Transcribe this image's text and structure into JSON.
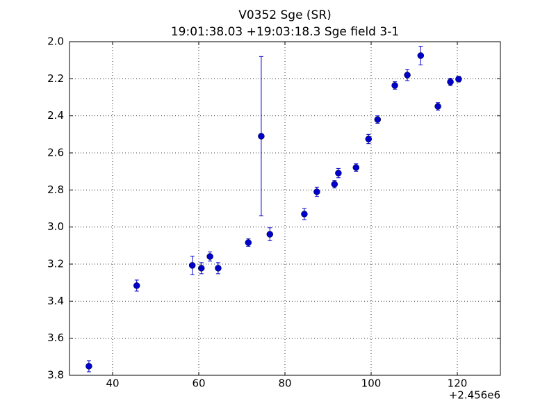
{
  "chart_data": {
    "type": "scatter",
    "title": "V0352 Sge (SR)",
    "subtitle": "19:01:38.03 +19:03:18.3 Sge field 3-1",
    "x_offset": "+2.456e6",
    "color": "#0000cc",
    "x": [
      34.5,
      45.6,
      58.5,
      60.6,
      62.6,
      64.5,
      71.5,
      74.5,
      76.5,
      84.5,
      87.4,
      91.5,
      92.4,
      96.5,
      99.4,
      101.5,
      105.5,
      108.4,
      111.5,
      115.5,
      118.4,
      120.3
    ],
    "values": [
      3.751,
      3.316,
      3.207,
      3.222,
      3.159,
      3.222,
      3.084,
      2.51,
      3.039,
      2.93,
      2.81,
      2.769,
      2.709,
      2.679,
      2.525,
      2.42,
      2.236,
      2.18,
      2.075,
      2.349,
      2.217,
      2.202
    ],
    "errors": [
      0.03,
      0.03,
      0.05,
      0.03,
      0.025,
      0.03,
      0.02,
      0.43,
      0.035,
      0.03,
      0.025,
      0.02,
      0.025,
      0.02,
      0.025,
      0.02,
      0.02,
      0.03,
      0.05,
      0.02,
      0.02,
      0.015
    ],
    "xlim": [
      30,
      130
    ],
    "xticks": [
      40,
      60,
      80,
      100,
      120
    ],
    "ylim": [
      3.8,
      2.0
    ],
    "yticks": [
      {
        "value": 2,
        "label": "2.0"
      },
      2.2,
      2.4,
      2.6,
      2.8,
      {
        "value": 3,
        "label": "3.0"
      },
      3.2,
      3.4,
      3.6,
      3.8
    ],
    "grid": true
  }
}
